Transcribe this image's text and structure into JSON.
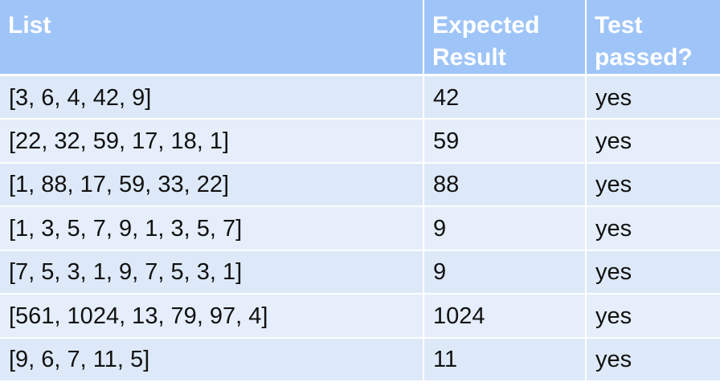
{
  "headers": {
    "list": "List",
    "expected_result": "Expected Result",
    "test_passed": "Test passed?"
  },
  "rows": [
    {
      "list": "[3, 6, 4, 42, 9]",
      "expected": "42",
      "passed": "yes"
    },
    {
      "list": "[22, 32, 59, 17, 18, 1]",
      "expected": "59",
      "passed": "yes"
    },
    {
      "list": "[1, 88, 17, 59, 33, 22]",
      "expected": "88",
      "passed": "yes"
    },
    {
      "list": "[1, 3, 5, 7, 9, 1, 3, 5, 7]",
      "expected": "9",
      "passed": "yes"
    },
    {
      "list": "[7, 5, 3, 1, 9, 7, 5, 3, 1]",
      "expected": "9",
      "passed": "yes"
    },
    {
      "list": "[561, 1024, 13, 79, 97, 4]",
      "expected": "1024",
      "passed": "yes"
    },
    {
      "list": "[9, 6, 7, 11, 5]",
      "expected": "11",
      "passed": "yes"
    }
  ],
  "colors": {
    "header_background": "#9fc5f8",
    "header_text": "#ffffff",
    "row_background": "#dde9f8",
    "grid_lines": "#ffffff"
  }
}
